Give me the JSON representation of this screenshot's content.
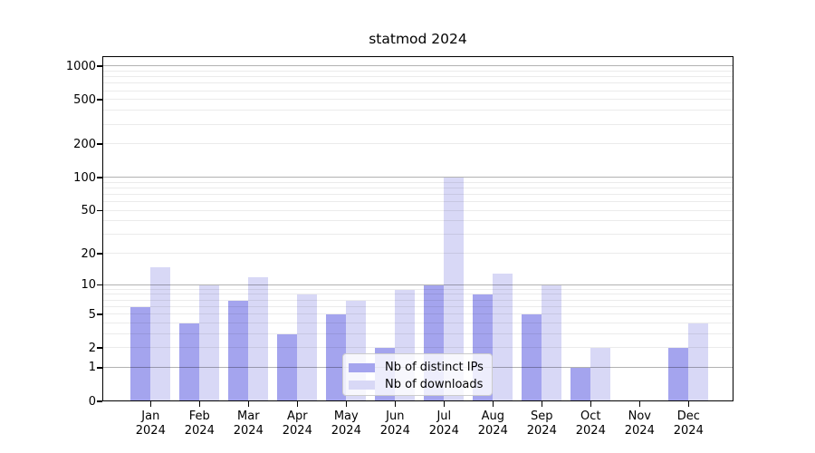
{
  "colors": {
    "ips_bar": "#a4a4ee",
    "downloads_bar": "#d8d8f6",
    "grid_major": "rgba(0,0,0,0.30)",
    "grid_minor": "rgba(0,0,0,0.08)",
    "axis_line": "#000000",
    "text": "#000000",
    "legend_border": "#cccccc"
  },
  "legend": [
    {
      "label": "Nb of distinct IPs",
      "color": "#a4a4ee"
    },
    {
      "label": "Nb of downloads",
      "color": "#d8d8f6"
    }
  ],
  "chart_data": {
    "type": "bar",
    "title": "statmod 2024",
    "scale": "log10(1+x)",
    "grid": true,
    "legend_position": "lower center",
    "categories": [
      "Jan 2024",
      "Feb 2024",
      "Mar 2024",
      "Apr 2024",
      "May 2024",
      "Jun 2024",
      "Jul 2024",
      "Aug 2024",
      "Sep 2024",
      "Oct 2024",
      "Nov 2024",
      "Dec 2024"
    ],
    "x_tick_line1": [
      "Jan",
      "Feb",
      "Mar",
      "Apr",
      "May",
      "Jun",
      "Jul",
      "Aug",
      "Sep",
      "Oct",
      "Nov",
      "Dec"
    ],
    "x_tick_line2": "2024",
    "series": [
      {
        "name": "Nb of distinct IPs",
        "color": "#a4a4ee",
        "values": [
          6,
          4,
          7,
          3,
          5,
          2,
          10,
          8,
          5,
          1,
          0,
          2
        ]
      },
      {
        "name": "Nb of downloads",
        "color": "#d8d8f6",
        "values": [
          15,
          10,
          12,
          8,
          7,
          9,
          100,
          13,
          10,
          2,
          0,
          4
        ]
      }
    ],
    "y_ticks": [
      0,
      1,
      2,
      5,
      10,
      20,
      50,
      100,
      200,
      500,
      1000
    ],
    "ylim": [
      0,
      1250
    ],
    "xlabel": "",
    "ylabel": ""
  }
}
